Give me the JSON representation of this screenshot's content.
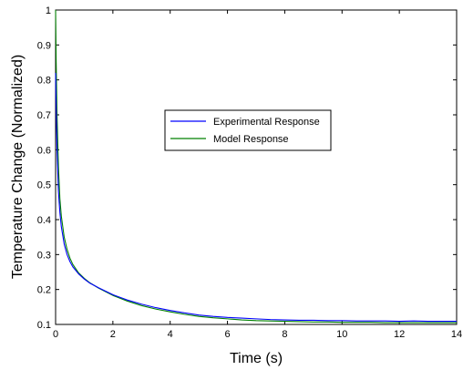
{
  "chart_data": {
    "type": "line",
    "title": "",
    "xlabel": "Time (s)",
    "ylabel": "Temperature Change (Normalized)",
    "xlim": [
      0,
      14
    ],
    "ylim": [
      0.1,
      1
    ],
    "xticks": [
      0,
      2,
      4,
      6,
      8,
      10,
      12,
      14
    ],
    "yticks": [
      0.1,
      0.2,
      0.3,
      0.4,
      0.5,
      0.6,
      0.7,
      0.8,
      0.9,
      1
    ],
    "grid": false,
    "legend_position": "center",
    "series": [
      {
        "name": "Experimental Response",
        "color": "#0000ff",
        "x": [
          0,
          0.02,
          0.05,
          0.1,
          0.15,
          0.2,
          0.3,
          0.4,
          0.5,
          0.6,
          0.8,
          1.0,
          1.2,
          1.5,
          2.0,
          2.5,
          3.0,
          3.5,
          4.0,
          4.5,
          5.0,
          5.5,
          6.0,
          6.5,
          7.0,
          7.5,
          8.0,
          8.5,
          9.0,
          9.5,
          10.0,
          10.5,
          11.0,
          11.5,
          12.0,
          12.5,
          13.0,
          13.5,
          14.0
        ],
        "y": [
          0.82,
          0.72,
          0.6,
          0.48,
          0.42,
          0.38,
          0.33,
          0.3,
          0.28,
          0.265,
          0.245,
          0.23,
          0.218,
          0.205,
          0.185,
          0.17,
          0.158,
          0.148,
          0.14,
          0.133,
          0.127,
          0.123,
          0.12,
          0.118,
          0.116,
          0.114,
          0.113,
          0.112,
          0.112,
          0.111,
          0.111,
          0.11,
          0.11,
          0.11,
          0.109,
          0.11,
          0.109,
          0.109,
          0.109
        ]
      },
      {
        "name": "Model Response",
        "color": "#008000",
        "x": [
          0,
          0.02,
          0.05,
          0.1,
          0.15,
          0.2,
          0.3,
          0.4,
          0.5,
          0.6,
          0.8,
          1.0,
          1.2,
          1.5,
          2.0,
          2.5,
          3.0,
          3.5,
          4.0,
          4.5,
          5.0,
          5.5,
          6.0,
          6.5,
          7.0,
          7.5,
          8.0,
          8.5,
          9.0,
          9.5,
          10.0,
          10.5,
          11.0,
          11.5,
          12.0,
          12.5,
          13.0,
          13.5,
          14.0
        ],
        "y": [
          1.0,
          0.85,
          0.7,
          0.55,
          0.46,
          0.41,
          0.35,
          0.315,
          0.29,
          0.272,
          0.248,
          0.232,
          0.219,
          0.204,
          0.183,
          0.167,
          0.154,
          0.144,
          0.136,
          0.129,
          0.123,
          0.119,
          0.116,
          0.113,
          0.111,
          0.11,
          0.109,
          0.108,
          0.107,
          0.107,
          0.106,
          0.106,
          0.106,
          0.105,
          0.105,
          0.105,
          0.105,
          0.105,
          0.105
        ]
      }
    ]
  }
}
